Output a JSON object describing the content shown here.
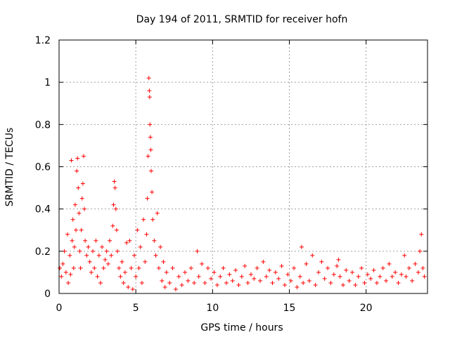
{
  "chart_data": {
    "type": "scatter",
    "title": "Day 194 of 2011, SRMTID for receiver hofn",
    "xlabel": "GPS time / hours",
    "ylabel": "SRMTID / TECUs",
    "xlim": [
      0,
      24
    ],
    "ylim": [
      0,
      1.2
    ],
    "xticks": [
      0,
      5,
      10,
      15,
      20
    ],
    "xtick_labels": [
      "0",
      "5",
      "10",
      "15",
      "20"
    ],
    "yticks": [
      0,
      0.2,
      0.4,
      0.6,
      0.8,
      1,
      1.2
    ],
    "ytick_labels": [
      "0",
      "0.2",
      "0.4",
      "0.6",
      "0.8",
      "1",
      "1.2"
    ],
    "grid": true,
    "marker": "+",
    "color": "#ff0000",
    "series": [
      {
        "name": "SRMTID",
        "points": [
          [
            0.05,
            0.12
          ],
          [
            0.15,
            0.08
          ],
          [
            0.25,
            0.14
          ],
          [
            0.35,
            0.2
          ],
          [
            0.45,
            0.1
          ],
          [
            0.55,
            0.28
          ],
          [
            0.6,
            0.05
          ],
          [
            0.7,
            0.18
          ],
          [
            0.75,
            0.09
          ],
          [
            0.8,
            0.63
          ],
          [
            0.85,
            0.25
          ],
          [
            0.9,
            0.35
          ],
          [
            0.95,
            0.12
          ],
          [
            1.0,
            0.22
          ],
          [
            1.05,
            0.42
          ],
          [
            1.1,
            0.3
          ],
          [
            1.15,
            0.58
          ],
          [
            1.2,
            0.64
          ],
          [
            1.25,
            0.5
          ],
          [
            1.3,
            0.38
          ],
          [
            1.35,
            0.2
          ],
          [
            1.4,
            0.12
          ],
          [
            1.45,
            0.3
          ],
          [
            1.5,
            0.45
          ],
          [
            1.55,
            0.52
          ],
          [
            1.6,
            0.65
          ],
          [
            1.65,
            0.4
          ],
          [
            1.7,
            0.25
          ],
          [
            1.8,
            0.18
          ],
          [
            1.9,
            0.22
          ],
          [
            2.0,
            0.15
          ],
          [
            2.1,
            0.1
          ],
          [
            2.2,
            0.2
          ],
          [
            2.3,
            0.12
          ],
          [
            2.4,
            0.25
          ],
          [
            2.5,
            0.08
          ],
          [
            2.6,
            0.18
          ],
          [
            2.7,
            0.05
          ],
          [
            2.8,
            0.22
          ],
          [
            2.9,
            0.12
          ],
          [
            3.0,
            0.16
          ],
          [
            3.1,
            0.2
          ],
          [
            3.2,
            0.14
          ],
          [
            3.3,
            0.25
          ],
          [
            3.4,
            0.18
          ],
          [
            3.5,
            0.32
          ],
          [
            3.55,
            0.42
          ],
          [
            3.6,
            0.53
          ],
          [
            3.65,
            0.5
          ],
          [
            3.7,
            0.4
          ],
          [
            3.75,
            0.3
          ],
          [
            3.8,
            0.2
          ],
          [
            3.9,
            0.12
          ],
          [
            4.0,
            0.08
          ],
          [
            4.1,
            0.15
          ],
          [
            4.2,
            0.05
          ],
          [
            4.3,
            0.1
          ],
          [
            4.4,
            0.24
          ],
          [
            4.5,
            0.03
          ],
          [
            4.6,
            0.25
          ],
          [
            4.7,
            0.12
          ],
          [
            4.8,
            0.02
          ],
          [
            4.9,
            0.18
          ],
          [
            5.0,
            0.08
          ],
          [
            5.1,
            0.3
          ],
          [
            5.2,
            0.12
          ],
          [
            5.3,
            0.22
          ],
          [
            5.4,
            0.05
          ],
          [
            5.5,
            0.35
          ],
          [
            5.6,
            0.15
          ],
          [
            5.7,
            0.28
          ],
          [
            5.75,
            0.45
          ],
          [
            5.8,
            0.65
          ],
          [
            5.85,
            1.02
          ],
          [
            5.88,
            0.96
          ],
          [
            5.9,
            0.93
          ],
          [
            5.92,
            0.8
          ],
          [
            5.95,
            0.74
          ],
          [
            5.98,
            0.68
          ],
          [
            6.0,
            0.58
          ],
          [
            6.05,
            0.48
          ],
          [
            6.1,
            0.35
          ],
          [
            6.2,
            0.25
          ],
          [
            6.3,
            0.18
          ],
          [
            6.4,
            0.38
          ],
          [
            6.5,
            0.12
          ],
          [
            6.6,
            0.22
          ],
          [
            6.7,
            0.06
          ],
          [
            6.8,
            0.15
          ],
          [
            6.9,
            0.03
          ],
          [
            7.0,
            0.1
          ],
          [
            7.2,
            0.05
          ],
          [
            7.4,
            0.12
          ],
          [
            7.6,
            0.02
          ],
          [
            7.8,
            0.08
          ],
          [
            8.0,
            0.04
          ],
          [
            8.2,
            0.1
          ],
          [
            8.4,
            0.06
          ],
          [
            8.6,
            0.12
          ],
          [
            8.8,
            0.05
          ],
          [
            9.0,
            0.2
          ],
          [
            9.1,
            0.08
          ],
          [
            9.3,
            0.14
          ],
          [
            9.5,
            0.05
          ],
          [
            9.7,
            0.12
          ],
          [
            9.9,
            0.07
          ],
          [
            10.1,
            0.1
          ],
          [
            10.3,
            0.04
          ],
          [
            10.5,
            0.08
          ],
          [
            10.7,
            0.12
          ],
          [
            10.9,
            0.05
          ],
          [
            11.1,
            0.09
          ],
          [
            11.3,
            0.06
          ],
          [
            11.5,
            0.11
          ],
          [
            11.7,
            0.04
          ],
          [
            11.9,
            0.08
          ],
          [
            12.1,
            0.13
          ],
          [
            12.3,
            0.05
          ],
          [
            12.5,
            0.09
          ],
          [
            12.7,
            0.07
          ],
          [
            12.9,
            0.12
          ],
          [
            13.1,
            0.06
          ],
          [
            13.3,
            0.15
          ],
          [
            13.5,
            0.08
          ],
          [
            13.7,
            0.11
          ],
          [
            13.9,
            0.05
          ],
          [
            14.1,
            0.1
          ],
          [
            14.3,
            0.07
          ],
          [
            14.5,
            0.13
          ],
          [
            14.7,
            0.04
          ],
          [
            14.9,
            0.09
          ],
          [
            15.1,
            0.06
          ],
          [
            15.3,
            0.12
          ],
          [
            15.5,
            0.03
          ],
          [
            15.7,
            0.08
          ],
          [
            15.8,
            0.22
          ],
          [
            15.9,
            0.05
          ],
          [
            16.1,
            0.14
          ],
          [
            16.3,
            0.06
          ],
          [
            16.5,
            0.18
          ],
          [
            16.7,
            0.04
          ],
          [
            16.9,
            0.1
          ],
          [
            17.1,
            0.15
          ],
          [
            17.3,
            0.07
          ],
          [
            17.5,
            0.12
          ],
          [
            17.7,
            0.05
          ],
          [
            17.9,
            0.09
          ],
          [
            18.1,
            0.13
          ],
          [
            18.2,
            0.16
          ],
          [
            18.3,
            0.08
          ],
          [
            18.5,
            0.04
          ],
          [
            18.7,
            0.11
          ],
          [
            18.9,
            0.06
          ],
          [
            19.1,
            0.1
          ],
          [
            19.3,
            0.04
          ],
          [
            19.5,
            0.08
          ],
          [
            19.7,
            0.12
          ],
          [
            19.9,
            0.05
          ],
          [
            20.1,
            0.09
          ],
          [
            20.3,
            0.07
          ],
          [
            20.5,
            0.11
          ],
          [
            20.7,
            0.05
          ],
          [
            20.9,
            0.08
          ],
          [
            21.1,
            0.12
          ],
          [
            21.3,
            0.06
          ],
          [
            21.5,
            0.14
          ],
          [
            21.7,
            0.08
          ],
          [
            21.9,
            0.1
          ],
          [
            22.1,
            0.05
          ],
          [
            22.3,
            0.09
          ],
          [
            22.5,
            0.18
          ],
          [
            22.6,
            0.08
          ],
          [
            22.8,
            0.12
          ],
          [
            23.0,
            0.06
          ],
          [
            23.2,
            0.14
          ],
          [
            23.4,
            0.1
          ],
          [
            23.5,
            0.2
          ],
          [
            23.6,
            0.28
          ],
          [
            23.7,
            0.12
          ],
          [
            23.8,
            0.08
          ]
        ]
      }
    ]
  }
}
